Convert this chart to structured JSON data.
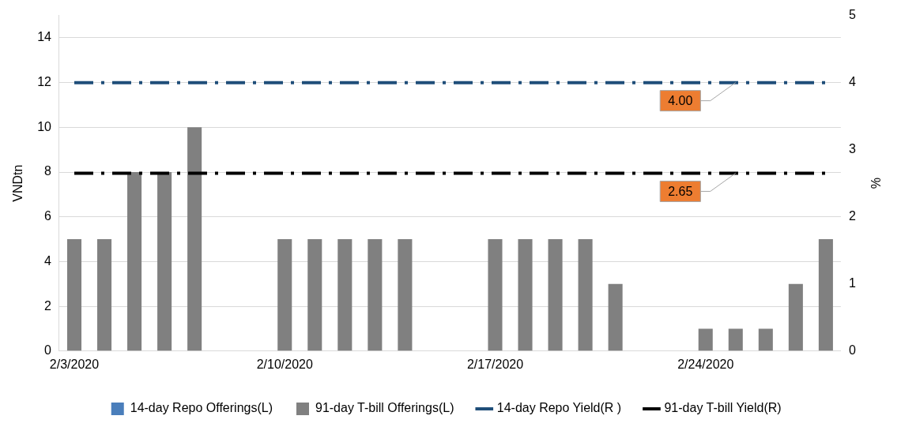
{
  "chart_data": {
    "type": "bar",
    "categories": [
      "2/3/2020",
      null,
      null,
      null,
      null,
      null,
      null,
      "2/10/2020",
      null,
      null,
      null,
      null,
      null,
      null,
      "2/17/2020",
      null,
      null,
      null,
      null,
      null,
      null,
      "2/24/2020",
      null,
      null,
      null,
      null
    ],
    "series": [
      {
        "name": "14-day Repo Offerings(L)",
        "color": "#4a7ebb",
        "values": [
          null,
          null,
          null,
          null,
          null,
          null,
          null,
          null,
          null,
          null,
          null,
          null,
          null,
          null,
          null,
          null,
          null,
          null,
          null,
          null,
          null,
          null,
          null,
          null,
          null,
          null
        ]
      },
      {
        "name": "91-day T-bill Offerings(L)",
        "color": "#808080",
        "values": [
          5,
          5,
          8,
          8,
          10,
          null,
          null,
          5,
          5,
          5,
          5,
          5,
          null,
          null,
          5,
          5,
          5,
          5,
          3,
          null,
          null,
          1,
          1,
          1,
          3,
          5
        ]
      },
      {
        "name": "14-day Repo Yield(R )",
        "type": "line",
        "axis": "y2",
        "color": "#1f4e79",
        "line_style": "dashed",
        "marker": "none",
        "values": [
          4,
          4,
          4,
          4,
          4,
          4,
          4,
          4,
          4,
          4,
          4,
          4,
          4,
          4,
          4,
          4,
          4,
          4,
          4,
          4,
          4,
          4,
          4,
          4,
          4,
          4
        ],
        "value_labels": [
          null,
          null,
          null,
          null,
          null,
          null,
          null,
          null,
          null,
          null,
          null,
          null,
          null,
          null,
          null,
          null,
          null,
          null,
          null,
          null,
          null,
          null,
          "4.00",
          null,
          null,
          null
        ]
      },
      {
        "name": "91-day T-bill Yield(R)",
        "type": "line",
        "axis": "y2",
        "color": "#000000",
        "line_style": "dashed",
        "marker": "none",
        "values": [
          2.65,
          2.65,
          2.65,
          2.65,
          2.65,
          2.65,
          2.65,
          2.65,
          2.65,
          2.65,
          2.65,
          2.65,
          2.65,
          2.65,
          2.65,
          2.65,
          2.65,
          2.65,
          2.65,
          2.65,
          2.65,
          2.65,
          2.65,
          2.65,
          2.65,
          2.65
        ],
        "value_labels": [
          null,
          null,
          null,
          null,
          null,
          null,
          null,
          null,
          null,
          null,
          null,
          null,
          null,
          null,
          null,
          null,
          null,
          null,
          null,
          null,
          null,
          null,
          "2.65",
          null,
          null,
          null
        ]
      }
    ],
    "ylabel": "VNDtn",
    "y2label": "%",
    "ylim": [
      0,
      15
    ],
    "yticks": [
      0,
      2,
      4,
      6,
      8,
      10,
      12,
      14
    ],
    "y2lim": [
      0,
      5
    ],
    "y2ticks": [
      0,
      1,
      2,
      3,
      4,
      5
    ],
    "grid": "y",
    "legend": "bottom"
  }
}
